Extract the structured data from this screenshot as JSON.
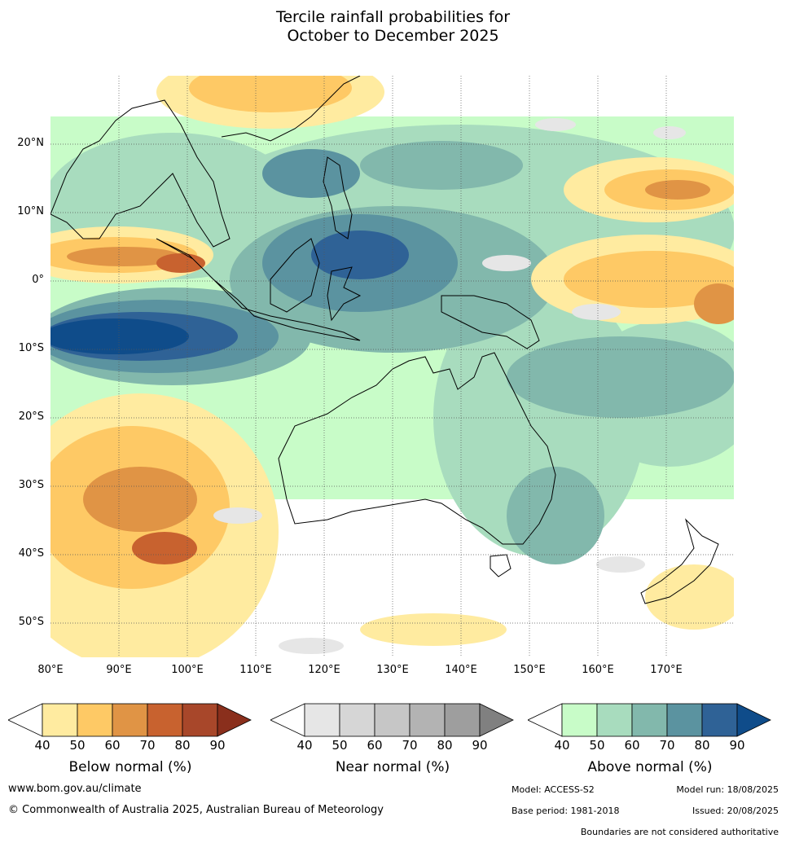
{
  "title_line1": "Tercile rainfall probabilities for",
  "title_line2": "October to December 2025",
  "map": {
    "lat_labels": [
      "20°N",
      "10°N",
      "0°",
      "10°S",
      "20°S",
      "30°S",
      "40°S",
      "50°S"
    ],
    "lon_labels": [
      "80°E",
      "90°E",
      "100°E",
      "110°E",
      "120°E",
      "130°E",
      "140°E",
      "150°E",
      "160°E",
      "170°E"
    ],
    "colors": {
      "below": [
        "#ffeba0",
        "#fec965",
        "#e09445",
        "#c8622f",
        "#a8472a",
        "#8a2f1c"
      ],
      "near": [
        "#e6e6e6",
        "#d6d6d6",
        "#c6c6c6",
        "#b3b3b3",
        "#9e9e9e",
        "#808080"
      ],
      "above": [
        "#c8fcc8",
        "#a8dcbe",
        "#82b8ac",
        "#5b93a0",
        "#2f6296",
        "#0f4c8a"
      ]
    }
  },
  "colorbars": [
    {
      "title": "Below normal (%)",
      "ticks": [
        "40",
        "50",
        "60",
        "70",
        "80",
        "90"
      ],
      "colors": [
        "#ffeba0",
        "#fec965",
        "#e09445",
        "#c8622f",
        "#a8472a",
        "#8a2f1c"
      ]
    },
    {
      "title": "Near normal (%)",
      "ticks": [
        "40",
        "50",
        "60",
        "70",
        "80",
        "90"
      ],
      "colors": [
        "#e6e6e6",
        "#d6d6d6",
        "#c6c6c6",
        "#b3b3b3",
        "#9e9e9e",
        "#808080"
      ]
    },
    {
      "title": "Above normal (%)",
      "ticks": [
        "40",
        "50",
        "60",
        "70",
        "80",
        "90"
      ],
      "colors": [
        "#c8fcc8",
        "#a8dcbe",
        "#82b8ac",
        "#5b93a0",
        "#2f6296",
        "#0f4c8a"
      ]
    }
  ],
  "footer": {
    "website": "www.bom.gov.au/climate",
    "copyright": "© Commonwealth of Australia 2025, Australian Bureau of Meteorology",
    "model": "Model: ACCESS-S2",
    "model_run": "Model run: 18/08/2025",
    "base_period": "Base period: 1981-2018",
    "issued": "Issued: 20/08/2025",
    "disclaimer": "Boundaries are not considered authoritative"
  }
}
